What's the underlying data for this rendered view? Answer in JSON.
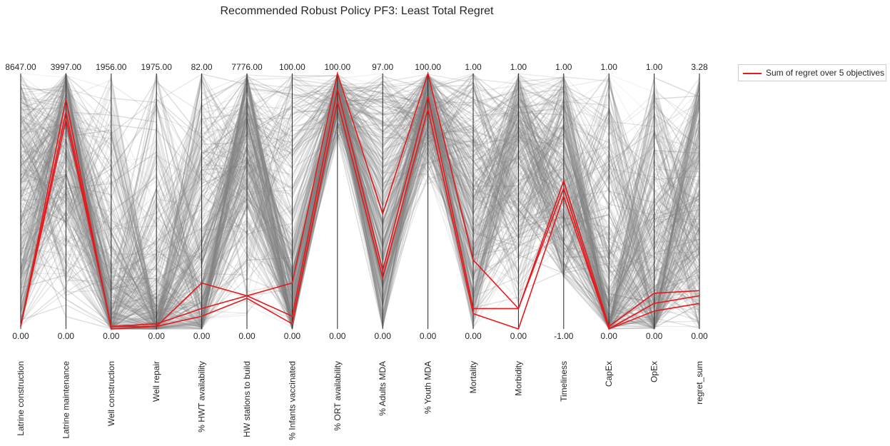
{
  "chart_data": {
    "type": "parallel_coordinates",
    "title": "Recommended Robust Policy PF3: Least Total Regret",
    "axes": [
      {
        "name": "Latrine construction",
        "max": "8647.00",
        "min": "0.00"
      },
      {
        "name": "Latrine maintenance",
        "max": "3997.00",
        "min": "0.00"
      },
      {
        "name": "Well construction",
        "max": "1956.00",
        "min": "0.00"
      },
      {
        "name": "Well repair",
        "max": "1975.00",
        "min": "0.00"
      },
      {
        "name": "% HWT availability",
        "max": "82.00",
        "min": "0.00"
      },
      {
        "name": "HW stations to build",
        "max": "7776.00",
        "min": "0.00"
      },
      {
        "name": "% Infants vaccinated",
        "max": "100.00",
        "min": "0.00"
      },
      {
        "name": "% ORT availability",
        "max": "100.00",
        "min": "0.00"
      },
      {
        "name": "% Adults MDA",
        "max": "97.00",
        "min": "0.00"
      },
      {
        "name": "% Youth MDA",
        "max": "100.00",
        "min": "0.00"
      },
      {
        "name": "Mortality",
        "max": "1.00",
        "min": "0.00"
      },
      {
        "name": "Morbidity",
        "max": "1.00",
        "min": "0.00"
      },
      {
        "name": "Timeliness",
        "max": "1.00",
        "min": "-1.00"
      },
      {
        "name": "CapEx",
        "max": "1.00",
        "min": "0.00"
      },
      {
        "name": "OpEx",
        "max": "1.00",
        "min": "0.00"
      },
      {
        "name": "regret_sum",
        "max": "3.28",
        "min": "0.00"
      }
    ],
    "legend": {
      "label": "Sum of regret over 5 objectives",
      "color": "#e41a1c",
      "placement": "outside-top-right"
    },
    "highlighted_policies_normalized": [
      [
        0.01,
        0.9,
        0.0,
        0.01,
        0.18,
        0.13,
        0.18,
        1.0,
        0.45,
        1.0,
        0.27,
        0.08,
        0.58,
        0.01,
        0.14,
        0.15
      ],
      [
        0.01,
        0.85,
        0.01,
        0.02,
        0.08,
        0.13,
        0.05,
        0.94,
        0.23,
        0.91,
        0.08,
        0.08,
        0.55,
        0.0,
        0.1,
        0.13
      ],
      [
        0.01,
        0.82,
        0.01,
        0.01,
        0.05,
        0.12,
        0.02,
        0.89,
        0.2,
        0.86,
        0.06,
        0.0,
        0.52,
        0.0,
        0.07,
        0.1
      ]
    ],
    "background_color": "#808080",
    "highlight_color": "#e41a1c"
  }
}
